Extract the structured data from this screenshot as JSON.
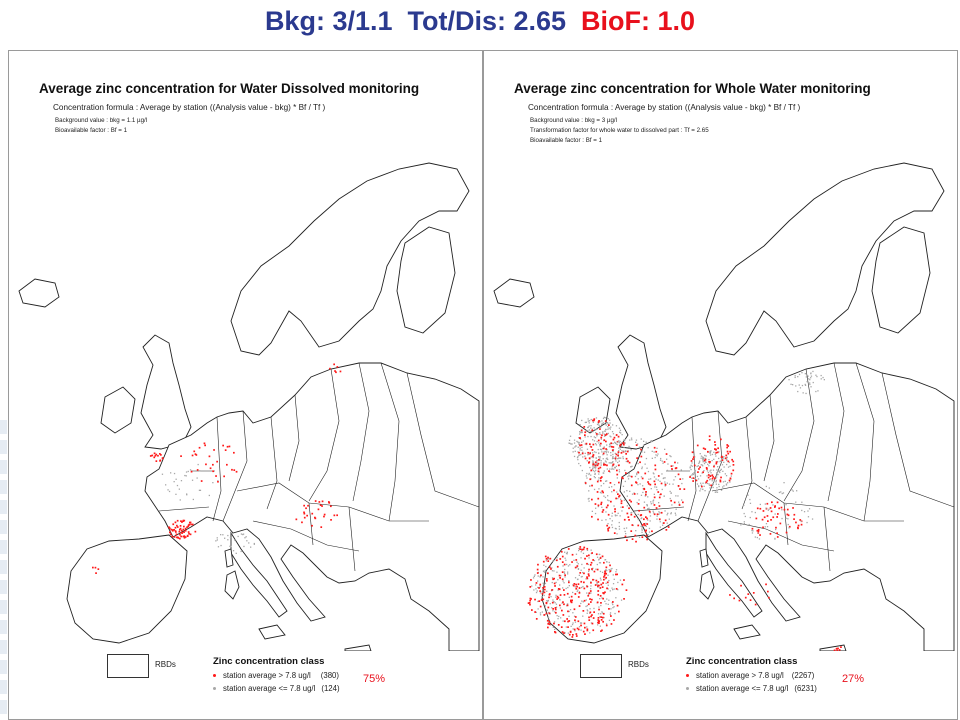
{
  "header": {
    "title_part1": "Bkg: 3/1.1  Tot/Dis: 2.65  ",
    "title_part2": "BioF: 1.0",
    "color_main": "#2b3a8f",
    "color_accent": "#e8101c"
  },
  "panels": [
    {
      "title": "Average zinc concentration for Water Dissolved monitoring",
      "formula": "Concentration formula : Average by station  ((Analysis value - bkg) * Bf / Tf )",
      "params": [
        "Background value : bkg = 1.1 µg/l",
        "Bioavailable factor : Bf = 1"
      ],
      "legend": {
        "rbd_label": "RBDs",
        "title": "Zinc concentration class",
        "above_label": "station average > 7.8 ug/l",
        "above_count": "(380)",
        "below_label": "station average <= 7.8 ug/l",
        "below_count": "(124)",
        "percent": "75%"
      }
    },
    {
      "title": "Average zinc concentration for Whole Water monitoring",
      "formula": "Concentration formula : Average by station  ((Analysis value - bkg) * Bf / Tf )",
      "params": [
        "Background value : bkg = 3 µg/l",
        "Transformation factor for whole water to dissolved part : Tf = 2.65",
        "Bioavailable factor : Bf = 1"
      ],
      "legend": {
        "rbd_label": "RBDs",
        "title": "Zinc concentration class",
        "above_label": "station average > 7.8 ug/l",
        "above_count": "(2267)",
        "below_label": "station average <= 7.8 ug/l",
        "below_count": "(6231)",
        "percent": "27%"
      }
    }
  ],
  "map_colors": {
    "border": "#222222",
    "above": "#ff1a1a",
    "below": "#a8a8a8"
  }
}
